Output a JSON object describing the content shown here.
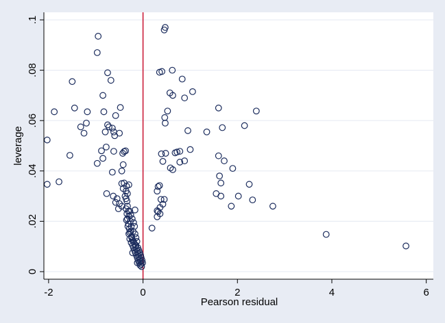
{
  "chart_data": {
    "type": "scatter",
    "title": "",
    "xlabel": "Pearson residual",
    "ylabel": "leverage",
    "xlim": [
      -2.1,
      6.15
    ],
    "ylim": [
      -0.003,
      0.103
    ],
    "x_ticks": [
      -2,
      0,
      2,
      4,
      6
    ],
    "x_tick_labels": [
      "-2",
      "0",
      "2",
      "4",
      "6"
    ],
    "y_ticks": [
      0,
      0.02,
      0.04,
      0.06,
      0.08,
      0.1
    ],
    "y_tick_labels": [
      "0",
      ".02",
      ".04",
      ".06",
      ".08",
      ".1"
    ],
    "grid": "horizontal",
    "reference_line": {
      "x": 0,
      "color": "#c8102e"
    },
    "marker": {
      "shape": "hollow-circle",
      "color": "#1a2b5c"
    },
    "colors": {
      "background": "#e8ecf4",
      "plot_area": "#ffffff",
      "grid": "#e8ecf4"
    },
    "points": [
      [
        0.47,
        0.097
      ],
      [
        0.45,
        0.096
      ],
      [
        -0.95,
        0.0935
      ],
      [
        -0.97,
        0.087
      ],
      [
        -0.75,
        0.079
      ],
      [
        -0.68,
        0.076
      ],
      [
        -1.5,
        0.0755
      ],
      [
        0.62,
        0.08
      ],
      [
        0.4,
        0.0795
      ],
      [
        0.35,
        0.0792
      ],
      [
        0.83,
        0.0765
      ],
      [
        1.05,
        0.0715
      ],
      [
        0.57,
        0.071
      ],
      [
        0.63,
        0.07
      ],
      [
        0.88,
        0.069
      ],
      [
        -0.85,
        0.07
      ],
      [
        -1.45,
        0.065
      ],
      [
        -0.48,
        0.0652
      ],
      [
        -0.83,
        0.0635
      ],
      [
        -1.88,
        0.0635
      ],
      [
        -1.18,
        0.0635
      ],
      [
        -0.58,
        0.062
      ],
      [
        -1.2,
        0.059
      ],
      [
        -0.75,
        0.0583
      ],
      [
        -1.32,
        0.0575
      ],
      [
        -0.72,
        0.0575
      ],
      [
        -0.65,
        0.057
      ],
      [
        -0.62,
        0.0555
      ],
      [
        -1.25,
        0.055
      ],
      [
        -0.8,
        0.0555
      ],
      [
        -0.5,
        0.055
      ],
      [
        -0.6,
        0.054
      ],
      [
        -2.03,
        0.0523
      ],
      [
        -0.78,
        0.0495
      ],
      [
        -0.88,
        0.048
      ],
      [
        -0.62,
        0.0478
      ],
      [
        -0.4,
        0.0477
      ],
      [
        -0.43,
        0.047
      ],
      [
        -0.37,
        0.048
      ],
      [
        -1.55,
        0.0462
      ],
      [
        -0.85,
        0.045
      ],
      [
        -0.97,
        0.043
      ],
      [
        -0.42,
        0.0425
      ],
      [
        -0.45,
        0.04
      ],
      [
        -0.65,
        0.0395
      ],
      [
        1.6,
        0.065
      ],
      [
        2.4,
        0.0638
      ],
      [
        0.52,
        0.0638
      ],
      [
        0.46,
        0.0612
      ],
      [
        0.47,
        0.059
      ],
      [
        2.15,
        0.058
      ],
      [
        1.68,
        0.0572
      ],
      [
        0.95,
        0.056
      ],
      [
        1.35,
        0.0555
      ],
      [
        1.0,
        0.0485
      ],
      [
        0.78,
        0.0478
      ],
      [
        0.72,
        0.0475
      ],
      [
        0.68,
        0.0472
      ],
      [
        0.48,
        0.047
      ],
      [
        0.39,
        0.0468
      ],
      [
        1.6,
        0.046
      ],
      [
        1.72,
        0.044
      ],
      [
        0.42,
        0.0438
      ],
      [
        0.78,
        0.0435
      ],
      [
        0.88,
        0.044
      ],
      [
        0.58,
        0.0412
      ],
      [
        0.63,
        0.0405
      ],
      [
        1.9,
        0.041
      ],
      [
        1.62,
        0.038
      ],
      [
        -1.78,
        0.0357
      ],
      [
        -2.03,
        0.0347
      ],
      [
        1.65,
        0.0352
      ],
      [
        2.25,
        0.0347
      ],
      [
        0.35,
        0.0342
      ],
      [
        0.32,
        0.0338
      ],
      [
        0.3,
        0.032
      ],
      [
        1.55,
        0.031
      ],
      [
        2.02,
        0.03
      ],
      [
        1.65,
        0.03
      ],
      [
        2.32,
        0.0285
      ],
      [
        0.38,
        0.0287
      ],
      [
        0.45,
        0.0287
      ],
      [
        0.42,
        0.0268
      ],
      [
        1.87,
        0.026
      ],
      [
        2.75,
        0.026
      ],
      [
        0.36,
        0.0255
      ],
      [
        0.3,
        0.0242
      ],
      [
        0.32,
        0.0238
      ],
      [
        0.36,
        0.023
      ],
      [
        0.3,
        0.0218
      ],
      [
        0.19,
        0.0173
      ],
      [
        3.88,
        0.0148
      ],
      [
        5.57,
        0.0102
      ],
      [
        -0.77,
        0.031
      ],
      [
        -0.63,
        0.03
      ],
      [
        -0.55,
        0.029
      ],
      [
        -0.58,
        0.0275
      ],
      [
        -0.5,
        0.027
      ],
      [
        -0.45,
        0.026
      ],
      [
        -0.52,
        0.025
      ],
      [
        -0.17,
        0.0245
      ],
      [
        -0.45,
        0.035
      ],
      [
        -0.4,
        0.0352
      ],
      [
        -0.35,
        0.034
      ],
      [
        -0.3,
        0.0345
      ],
      [
        -0.42,
        0.033
      ],
      [
        -0.36,
        0.032
      ],
      [
        -0.33,
        0.031
      ],
      [
        -0.38,
        0.03
      ],
      [
        -0.36,
        0.029
      ],
      [
        -0.34,
        0.028
      ],
      [
        -0.33,
        0.026
      ],
      [
        -0.36,
        0.025
      ],
      [
        -0.31,
        0.024
      ],
      [
        -0.34,
        0.023
      ],
      [
        -0.3,
        0.022
      ],
      [
        -0.33,
        0.021
      ],
      [
        -0.27,
        0.02
      ],
      [
        -0.31,
        0.019
      ],
      [
        -0.25,
        0.018
      ],
      [
        -0.29,
        0.017
      ],
      [
        -0.26,
        0.016
      ],
      [
        -0.3,
        0.015
      ],
      [
        -0.24,
        0.014
      ],
      [
        -0.28,
        0.013
      ],
      [
        -0.22,
        0.0125
      ],
      [
        -0.2,
        0.012
      ],
      [
        -0.25,
        0.0115
      ],
      [
        -0.18,
        0.011
      ],
      [
        -0.22,
        0.0105
      ],
      [
        -0.16,
        0.01
      ],
      [
        -0.2,
        0.0095
      ],
      [
        -0.14,
        0.009
      ],
      [
        -0.18,
        0.0085
      ],
      [
        -0.12,
        0.008
      ],
      [
        -0.16,
        0.0075
      ],
      [
        -0.1,
        0.007
      ],
      [
        -0.14,
        0.0065
      ],
      [
        -0.09,
        0.006
      ],
      [
        -0.12,
        0.0055
      ],
      [
        -0.07,
        0.005
      ],
      [
        -0.1,
        0.0045
      ],
      [
        -0.05,
        0.004
      ],
      [
        -0.08,
        0.0035
      ],
      [
        -0.04,
        0.003
      ],
      [
        -0.06,
        0.0025
      ],
      [
        -0.03,
        0.002
      ],
      [
        -0.28,
        0.024
      ],
      [
        -0.26,
        0.0225
      ],
      [
        -0.23,
        0.021
      ],
      [
        -0.2,
        0.0195
      ],
      [
        -0.18,
        0.018
      ],
      [
        -0.21,
        0.016
      ],
      [
        -0.17,
        0.015
      ],
      [
        -0.15,
        0.0135
      ],
      [
        -0.13,
        0.012
      ],
      [
        -0.15,
        0.0105
      ],
      [
        -0.11,
        0.0095
      ],
      [
        -0.09,
        0.0085
      ],
      [
        -0.07,
        0.0075
      ],
      [
        -0.05,
        0.0065
      ],
      [
        -0.04,
        0.0055
      ],
      [
        -0.02,
        0.0045
      ],
      [
        -0.01,
        0.0035
      ],
      [
        -0.12,
        0.0035
      ],
      [
        -0.35,
        0.0205
      ],
      [
        -0.32,
        0.018
      ],
      [
        -0.28,
        0.0155
      ],
      [
        -0.24,
        0.0135
      ],
      [
        -0.22,
        0.0075
      ]
    ]
  }
}
